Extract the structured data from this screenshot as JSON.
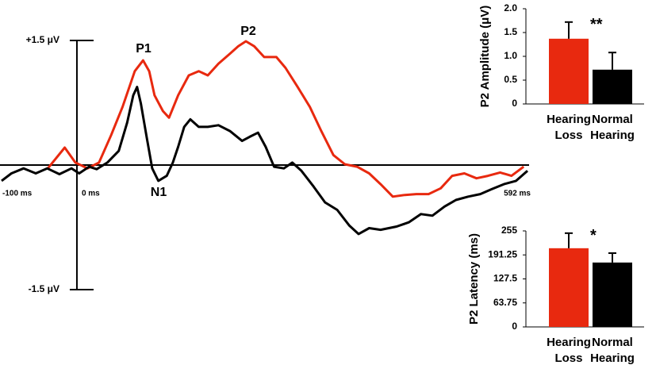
{
  "chart_data": [
    {
      "type": "line",
      "xlim": [
        -100,
        592
      ],
      "ylim": [
        -1.5,
        1.5
      ],
      "xticks": [
        {
          "value": -100,
          "label": "-100 ms"
        },
        {
          "value": 0,
          "label": "0 ms"
        },
        {
          "value": 592,
          "label": "592 ms"
        }
      ],
      "yticks": [
        {
          "value": -1.5,
          "label": "-1.5 μV"
        },
        {
          "value": 1.5,
          "label": "+1.5 μV"
        }
      ],
      "annotations": [
        "P1",
        "P2",
        "N1"
      ],
      "series": [
        {
          "color": "#e8290f",
          "x": [
            -39,
            -16,
            -2,
            14,
            29,
            45,
            60,
            76,
            87,
            95,
            102,
            113,
            121,
            133,
            147,
            160,
            172,
            186,
            201,
            212,
            222,
            233,
            246,
            262,
            274,
            290,
            306,
            321,
            337,
            352,
            368,
            384,
            399,
            415,
            431,
            446,
            462,
            478,
            493,
            509,
            525,
            540,
            556,
            571,
            587
          ],
          "values": [
            -0.05,
            0.21,
            0.03,
            -0.04,
            0.03,
            0.36,
            0.7,
            1.13,
            1.26,
            1.13,
            0.84,
            0.65,
            0.57,
            0.84,
            1.08,
            1.13,
            1.08,
            1.22,
            1.34,
            1.43,
            1.49,
            1.43,
            1.3,
            1.3,
            1.17,
            0.94,
            0.7,
            0.41,
            0.12,
            0.01,
            -0.02,
            -0.1,
            -0.23,
            -0.38,
            -0.36,
            -0.35,
            -0.35,
            -0.28,
            -0.13,
            -0.1,
            -0.16,
            -0.13,
            -0.09,
            -0.13,
            -0.02
          ]
        },
        {
          "color": "#000000",
          "x": [
            -99,
            -86,
            -70,
            -54,
            -39,
            -23,
            -7,
            3,
            16,
            26,
            40,
            55,
            66,
            74,
            79,
            84,
            92,
            99,
            107,
            118,
            126,
            133,
            141,
            149,
            160,
            172,
            186,
            201,
            217,
            227,
            238,
            248,
            259,
            272,
            283,
            295,
            311,
            326,
            342,
            358,
            370,
            384,
            399,
            420,
            436,
            452,
            467,
            483,
            498,
            514,
            530,
            545,
            561,
            577,
            592
          ],
          "values": [
            -0.19,
            -0.1,
            -0.04,
            -0.1,
            -0.04,
            -0.11,
            -0.04,
            -0.1,
            -0.02,
            -0.05,
            0.03,
            0.17,
            0.51,
            0.84,
            0.94,
            0.74,
            0.32,
            -0.04,
            -0.19,
            -0.13,
            0.03,
            0.22,
            0.46,
            0.55,
            0.46,
            0.46,
            0.48,
            0.41,
            0.29,
            0.34,
            0.39,
            0.22,
            -0.02,
            -0.04,
            0.03,
            -0.07,
            -0.26,
            -0.45,
            -0.54,
            -0.73,
            -0.83,
            -0.76,
            -0.78,
            -0.74,
            -0.69,
            -0.59,
            -0.61,
            -0.5,
            -0.42,
            -0.38,
            -0.35,
            -0.29,
            -0.23,
            -0.19,
            -0.07
          ]
        }
      ]
    },
    {
      "type": "bar",
      "ylabel": "P2 Amplitude (μV)",
      "categories": [
        "Hearing Loss",
        "Normal Hearing"
      ],
      "values": [
        1.37,
        0.72
      ],
      "errors": [
        0.35,
        0.36
      ],
      "colors": [
        "#e8290f",
        "#000000"
      ],
      "ylim": [
        0,
        2
      ],
      "yticks": [
        0,
        0.5,
        {
          "value": 1,
          "label": "1.0"
        },
        1.5,
        {
          "value": 2,
          "label": "2.0"
        }
      ],
      "annotation": "**"
    },
    {
      "type": "bar",
      "ylabel": "P2 Latency (ms)",
      "categories": [
        "Hearing Loss",
        "Normal Hearing"
      ],
      "values": [
        209,
        171
      ],
      "errors": [
        40,
        25
      ],
      "colors": [
        "#e8290f",
        "#000000"
      ],
      "ylim": [
        0,
        255
      ],
      "yticks": [
        0,
        63.75,
        127.5,
        191.25,
        255
      ],
      "annotation": "*"
    }
  ]
}
